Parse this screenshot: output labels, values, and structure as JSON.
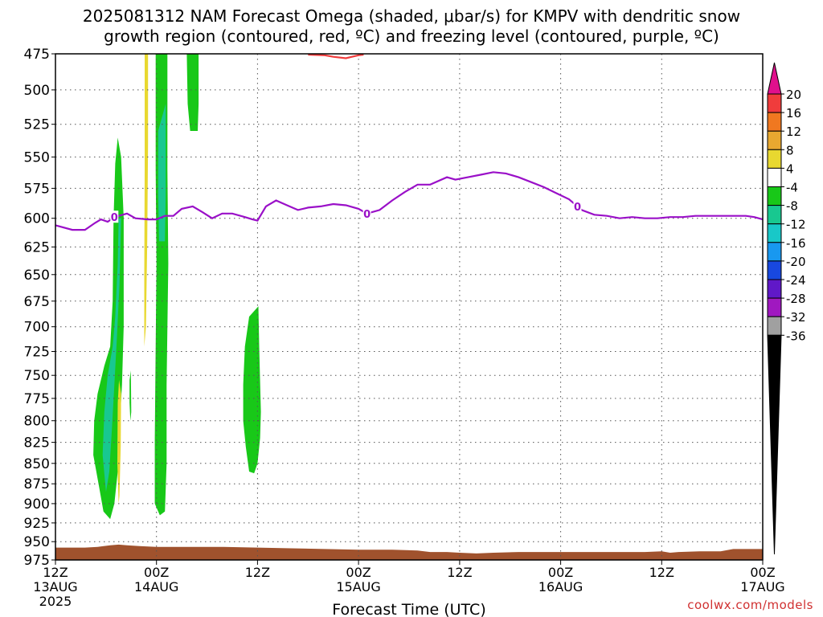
{
  "title": {
    "line1": "2025081312 NAM Forecast Omega (shaded, μbar/s) for KMPV with dendritic snow",
    "line2": "growth region (contoured, red, ºC) and freezing level (contoured, purple, ºC)"
  },
  "credit": "coolwx.com/models",
  "chart_data": {
    "type": "area",
    "title": "2025081312 NAM Forecast Omega (shaded, μbar/s) for KMPV with dendritic snow growth region (contoured, red, ºC) and freezing level (contoured, purple, ºC)",
    "xlabel": "Forecast Time (UTC)",
    "ylabel": "",
    "x_unit": "forecast hours from 2025-08-13 12Z",
    "xlim": [
      0,
      84
    ],
    "ylim": [
      975,
      475
    ],
    "y_ticks": [
      475,
      500,
      525,
      550,
      575,
      600,
      625,
      650,
      675,
      700,
      725,
      750,
      775,
      800,
      825,
      850,
      875,
      900,
      925,
      950,
      975
    ],
    "x_ticks": [
      {
        "hour": 0,
        "lines": [
          "12Z",
          "13AUG",
          "2025"
        ]
      },
      {
        "hour": 12,
        "lines": [
          "00Z",
          "14AUG"
        ]
      },
      {
        "hour": 24,
        "lines": [
          "12Z"
        ]
      },
      {
        "hour": 36,
        "lines": [
          "00Z",
          "15AUG"
        ]
      },
      {
        "hour": 48,
        "lines": [
          "12Z"
        ]
      },
      {
        "hour": 60,
        "lines": [
          "00Z",
          "16AUG"
        ]
      },
      {
        "hour": 72,
        "lines": [
          "12Z"
        ]
      },
      {
        "hour": 84,
        "lines": [
          "00Z",
          "17AUG"
        ]
      }
    ],
    "grid": true,
    "colorbar": {
      "labels": [
        "20",
        "16",
        "12",
        "8",
        "4",
        "-4",
        "-8",
        "-12",
        "-16",
        "-20",
        "-24",
        "-28",
        "-32",
        "-36"
      ],
      "colors": [
        "#f03c3c",
        "#f07820",
        "#e8a830",
        "#e8d830",
        "#ffffff",
        "#18c818",
        "#18c890",
        "#18c8c8",
        "#1898f0",
        "#1848e0",
        "#6018c8",
        "#a018c0",
        "#a0a0a0"
      ],
      "top_arrow_color": "#e0108c",
      "bottom_arrow_color": "#000000"
    },
    "freezing_level": {
      "name": "freezing level (ºC)",
      "color": "#9a10c8",
      "label": "0",
      "hours": [
        0,
        2,
        3.5,
        4.7,
        5.4,
        6.2,
        7,
        8.5,
        9.5,
        11,
        12,
        13,
        14,
        15,
        16.3,
        17.5,
        18.6,
        19.8,
        21,
        22.5,
        23.4,
        24,
        25,
        26.2,
        27.5,
        28.8,
        30,
        31.5,
        33,
        34.5,
        36,
        37,
        38.5,
        40,
        41.5,
        43,
        44.5,
        46.5,
        47.5,
        49,
        50.5,
        52,
        53.5,
        55,
        56.5,
        58,
        59.5,
        61,
        62.5,
        64,
        65.5,
        67,
        68.5,
        70,
        71.5,
        73,
        74.5,
        76,
        77.5,
        79,
        80.5,
        82,
        83,
        84
      ],
      "pressure": [
        606,
        610,
        610,
        604,
        601,
        603,
        599,
        596,
        600,
        601,
        601,
        598,
        598,
        592,
        590,
        595,
        600,
        596,
        596,
        599,
        601,
        602,
        590,
        585,
        589,
        593,
        591,
        590,
        588,
        589,
        592,
        596,
        593,
        585,
        578,
        572,
        572,
        566,
        568,
        566,
        564,
        562,
        563,
        566,
        570,
        574,
        579,
        584,
        593,
        597,
        598,
        600,
        599,
        600,
        600,
        599,
        599,
        598,
        598,
        598,
        598,
        598,
        599,
        601
      ],
      "contour_labels_at_hours": [
        7,
        37,
        62
      ]
    },
    "dendritic_growth_region": {
      "name": "dendritic snow growth region (ºC)",
      "color": "#f03c3c",
      "hours": [
        30,
        32,
        33,
        34.5,
        35.2,
        36,
        36.6
      ],
      "pressure": [
        475,
        476,
        477,
        478,
        477,
        476,
        475
      ]
    },
    "omega_regions": [
      {
        "value": "-4",
        "color": "#18c818",
        "polygon": [
          [
            4.5,
            840
          ],
          [
            4.6,
            800
          ],
          [
            5,
            770
          ],
          [
            5.8,
            740
          ],
          [
            6.5,
            720
          ],
          [
            6.8,
            675
          ],
          [
            6.9,
            600
          ],
          [
            7.1,
            555
          ],
          [
            7.4,
            535
          ],
          [
            7.8,
            550
          ],
          [
            8.1,
            600
          ],
          [
            8.1,
            700
          ],
          [
            7.9,
            760
          ],
          [
            7.6,
            810
          ],
          [
            7.4,
            860
          ],
          [
            7.0,
            900
          ],
          [
            6.5,
            920
          ],
          [
            5.7,
            910
          ],
          [
            5.2,
            880
          ]
        ]
      },
      {
        "value": "-8",
        "color": "#18c890",
        "polygon": [
          [
            5.6,
            840
          ],
          [
            5.8,
            790
          ],
          [
            6.2,
            750
          ],
          [
            6.8,
            720
          ],
          [
            7.1,
            690
          ],
          [
            7.4,
            640
          ],
          [
            7.5,
            600
          ],
          [
            7.8,
            600
          ],
          [
            7.6,
            660
          ],
          [
            7.3,
            710
          ],
          [
            7.0,
            760
          ],
          [
            6.7,
            810
          ],
          [
            6.4,
            860
          ],
          [
            6.0,
            885
          ]
        ]
      },
      {
        "value": "4",
        "color": "#e8d830",
        "polygon": [
          [
            7.4,
            780
          ],
          [
            7.55,
            755
          ],
          [
            7.8,
            770
          ],
          [
            7.75,
            830
          ],
          [
            7.6,
            890
          ],
          [
            7.5,
            900
          ],
          [
            7.35,
            850
          ]
        ]
      },
      {
        "value": "-4",
        "color": "#18c818",
        "polygon": [
          [
            8.8,
            755
          ],
          [
            8.95,
            745
          ],
          [
            9.0,
            790
          ],
          [
            8.9,
            800
          ],
          [
            8.8,
            780
          ]
        ]
      },
      {
        "value": "4",
        "color": "#e8d830",
        "polygon": [
          [
            10.6,
            475
          ],
          [
            11.0,
            475
          ],
          [
            11.0,
            540
          ],
          [
            10.9,
            620
          ],
          [
            10.75,
            700
          ],
          [
            10.55,
            720
          ],
          [
            10.55,
            650
          ],
          [
            10.6,
            560
          ]
        ]
      },
      {
        "value": "-4",
        "color": "#18c818",
        "polygon": [
          [
            11.9,
            475
          ],
          [
            13.3,
            475
          ],
          [
            13.3,
            560
          ],
          [
            13.4,
            640
          ],
          [
            13.2,
            760
          ],
          [
            13.2,
            850
          ],
          [
            13.0,
            910
          ],
          [
            12.4,
            915
          ],
          [
            11.8,
            900
          ],
          [
            11.8,
            820
          ],
          [
            11.9,
            720
          ],
          [
            12.0,
            640
          ],
          [
            11.9,
            560
          ]
        ]
      },
      {
        "value": "-8",
        "color": "#18c890",
        "polygon": [
          [
            12.2,
            530
          ],
          [
            13.1,
            510
          ],
          [
            13.1,
            580
          ],
          [
            13.0,
            620
          ],
          [
            12.3,
            620
          ],
          [
            12.2,
            580
          ]
        ]
      },
      {
        "value": "-4",
        "color": "#18c818",
        "polygon": [
          [
            15.6,
            475
          ],
          [
            17.0,
            475
          ],
          [
            17.0,
            510
          ],
          [
            16.9,
            530
          ],
          [
            16.0,
            530
          ],
          [
            15.7,
            510
          ]
        ]
      },
      {
        "value": "-4",
        "color": "#18c818",
        "polygon": [
          [
            22.3,
            760
          ],
          [
            22.5,
            720
          ],
          [
            23.0,
            690
          ],
          [
            24.1,
            680
          ],
          [
            24.2,
            720
          ],
          [
            24.4,
            790
          ],
          [
            24.3,
            820
          ],
          [
            24.0,
            850
          ],
          [
            23.6,
            862
          ],
          [
            23.0,
            860
          ],
          [
            22.6,
            830
          ],
          [
            22.3,
            800
          ]
        ]
      }
    ],
    "terrain": {
      "color": "#a0522d",
      "hours": [
        0,
        3.5,
        5,
        6.5,
        7.5,
        8.5,
        10,
        12,
        20,
        24,
        28,
        32,
        36,
        40,
        43,
        44.5,
        46.5,
        48,
        50,
        52,
        55,
        60,
        64,
        67,
        70,
        72,
        73,
        74,
        76.5,
        79,
        80.5,
        82,
        84
      ],
      "pressure": [
        958,
        958,
        957,
        955,
        954,
        955,
        956,
        957,
        957,
        958,
        959,
        960,
        961,
        961,
        962,
        964,
        964,
        965,
        966,
        965,
        964,
        964,
        964,
        964,
        964,
        963,
        965,
        964,
        963,
        963,
        960,
        960,
        960
      ]
    }
  }
}
